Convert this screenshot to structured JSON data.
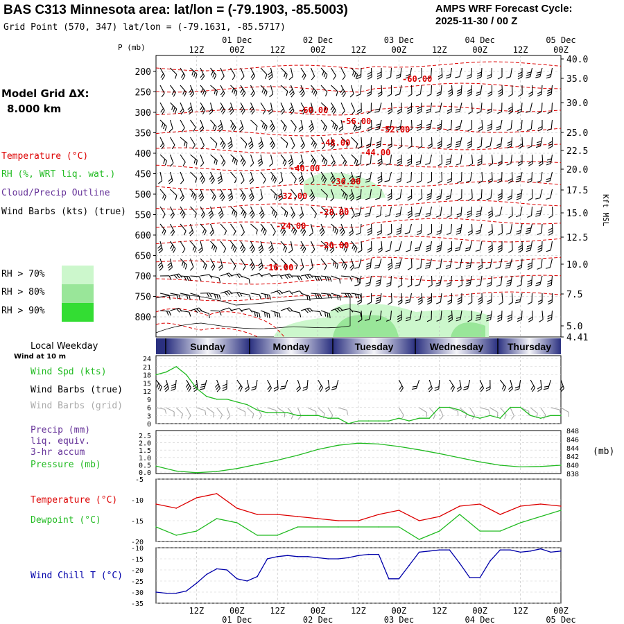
{
  "header": {
    "title": "BAS C313 Minnesota area:  lat/lon = (-79.1903, -85.5003)",
    "forecast_label": "AMPS WRF Forecast Cycle:",
    "forecast_cycle": "2025-11-30 / 00  Z",
    "grid_point": "Grid Point (570, 347) lat/lon = (-79.1631, -85.5717)"
  },
  "left_panel": {
    "model_grid_label": "Model Grid ΔX:",
    "model_grid_value": "8.000 km",
    "temp_label": "Temperature (°C)",
    "rh_label": "RH (%, WRT liq. wat.)",
    "cloud_label": "Cloud/Precip Outline",
    "wind_barbs_label": "Wind Barbs (kts) (true)",
    "rh_legend": [
      {
        "label": "RH > 70%",
        "color": "#ccf7cc"
      },
      {
        "label": "RH > 80%",
        "color": "#99e699"
      },
      {
        "label": "RH > 90%",
        "color": "#33dd33"
      }
    ]
  },
  "time_axis": {
    "hour_ticks": [
      "12Z",
      "00Z",
      "12Z",
      "00Z",
      "12Z",
      "00Z",
      "12Z",
      "00Z",
      "12Z",
      "00Z"
    ],
    "date_labels": [
      "01 Dec",
      "02 Dec",
      "03 Dec",
      "04 Dec",
      "05 Dec"
    ]
  },
  "profile": {
    "p_label": "P (mb)",
    "kft_label": "Kft MSL",
    "pressure_ticks": [
      "200",
      "250",
      "300",
      "350",
      "400",
      "450",
      "500",
      "550",
      "600",
      "650",
      "700",
      "750",
      "800"
    ],
    "height_ticks": [
      "40.0",
      "35.0",
      "30.0",
      "25.0",
      "22.5",
      "20.0",
      "17.5",
      "15.0",
      "12.5",
      "10.0",
      "7.5",
      "5.0",
      "4.41"
    ],
    "isotherm_labels": [
      "-60.00",
      "-60.00",
      "-56.00",
      "-52.00",
      "-48.00",
      "-44.00",
      "-40.00",
      "-36.00",
      "-32.00",
      "-28.00",
      "-24.00",
      "-20.00",
      "-16.00"
    ]
  },
  "weekday_bar": {
    "label": "Local Weekday",
    "days": [
      "Sunday",
      "Monday",
      "Tuesday",
      "Wednesday",
      "Thursday"
    ]
  },
  "wind_panel": {
    "sublabel": "Wind at 10 m",
    "spd_label": "Wind Spd (kts)",
    "barbs_true_label": "Wind Barbs (true)",
    "barbs_grid_label": "Wind Barbs (grid)",
    "y_ticks": [
      "24",
      "21",
      "18",
      "15",
      "12",
      "9",
      "6",
      "3",
      "0"
    ]
  },
  "precip_panel": {
    "precip_label": "Precip (mm)",
    "liq_label": "liq. equiv.",
    "accum_label": "3-hr accum",
    "pressure_label": "Pressure (mb)",
    "mb_unit": "(mb)",
    "left_ticks": [
      "2.5",
      "2.0",
      "1.5",
      "1.0",
      "0.5",
      "0.0"
    ],
    "right_ticks": [
      "848",
      "846",
      "844",
      "842",
      "840",
      "838"
    ]
  },
  "temp_panel": {
    "temp_label": "Temperature (°C)",
    "dew_label": "Dewpoint (°C)",
    "y_ticks": [
      "-5",
      "-10",
      "-15",
      "-20"
    ]
  },
  "chill_panel": {
    "label": "Wind Chill T (°C)",
    "y_ticks": [
      "-10",
      "-15",
      "-20",
      "-25",
      "-30",
      "-35"
    ]
  },
  "colors": {
    "temperature": "#dd0000",
    "rh": "#22bb22",
    "cloud": "#663399",
    "wind_chill": "#0000aa",
    "grid_barbs": "#aaaaaa"
  },
  "chart_data": [
    {
      "type": "line",
      "title": "Wind Spd (kts)",
      "x_unit": "forecast hour from 2025-11-30 00Z",
      "x": [
        0,
        3,
        6,
        9,
        12,
        15,
        18,
        21,
        24,
        27,
        30,
        33,
        36,
        39,
        42,
        45,
        48,
        51,
        54,
        57,
        60,
        63,
        66,
        69,
        72,
        75,
        78,
        81,
        84,
        87,
        90,
        93,
        96,
        99,
        102,
        105,
        108,
        111,
        114,
        117,
        120
      ],
      "series": [
        {
          "name": "Wind Spd (kts)",
          "values": [
            18,
            19,
            21,
            18,
            13,
            10,
            9,
            9,
            8,
            7,
            5,
            4,
            4,
            4,
            3,
            3,
            3,
            2,
            2,
            0,
            1,
            1,
            1,
            1,
            2,
            1,
            2,
            2,
            6,
            6,
            5,
            3,
            2,
            3,
            2,
            6,
            6,
            3,
            2,
            3,
            3
          ]
        }
      ],
      "ylim": [
        0,
        24
      ]
    },
    {
      "type": "line",
      "title": "Pressure (mb)",
      "x": [
        0,
        6,
        12,
        18,
        24,
        30,
        36,
        42,
        48,
        54,
        60,
        66,
        72,
        78,
        84,
        90,
        96,
        102,
        108,
        114,
        120
      ],
      "series": [
        {
          "name": "Pressure (mb)",
          "values": [
            839.8,
            838.6,
            838.2,
            838.5,
            839.2,
            840.2,
            841.2,
            842.4,
            843.8,
            844.8,
            845.3,
            845.1,
            844.5,
            843.7,
            842.8,
            841.8,
            840.8,
            840.0,
            839.6,
            839.7,
            840.0
          ]
        }
      ],
      "ylim": [
        838,
        848
      ]
    },
    {
      "type": "line",
      "title": "Temperature / Dewpoint (°C)",
      "x": [
        0,
        6,
        12,
        18,
        24,
        30,
        36,
        42,
        48,
        54,
        60,
        66,
        72,
        78,
        84,
        90,
        96,
        102,
        108,
        114,
        120
      ],
      "series": [
        {
          "name": "Temperature (°C)",
          "values": [
            -11,
            -12,
            -9.5,
            -8.5,
            -12,
            -13.5,
            -13.5,
            -14,
            -14.5,
            -15,
            -15,
            -13.5,
            -12.5,
            -15,
            -14,
            -11.5,
            -11,
            -13.5,
            -11.5,
            -11,
            -11.5
          ]
        },
        {
          "name": "Dewpoint (°C)",
          "values": [
            -16.5,
            -18.5,
            -17.5,
            -14.5,
            -15.5,
            -18.5,
            -18.5,
            -16.5,
            -16.5,
            -16.5,
            -16.5,
            -16.5,
            -16.5,
            -19.5,
            -17.5,
            -13.5,
            -17.5,
            -17.5,
            -15.5,
            -14.0,
            -12.5
          ]
        }
      ],
      "ylim": [
        -20,
        -5
      ]
    },
    {
      "type": "line",
      "title": "Wind Chill T (°C)",
      "x": [
        0,
        3,
        6,
        9,
        12,
        15,
        18,
        21,
        24,
        27,
        30,
        33,
        36,
        39,
        42,
        45,
        48,
        51,
        54,
        57,
        60,
        63,
        66,
        69,
        72,
        75,
        78,
        81,
        84,
        87,
        90,
        93,
        96,
        99,
        102,
        105,
        108,
        111,
        114,
        117,
        120
      ],
      "series": [
        {
          "name": "Wind Chill T (°C)",
          "values": [
            -30,
            -30.5,
            -30.5,
            -29.5,
            -26,
            -22,
            -19.5,
            -20,
            -24,
            -25,
            -23,
            -15,
            -14,
            -13.5,
            -14,
            -14,
            -14.5,
            -15,
            -15,
            -14.5,
            -13.5,
            -13,
            -13,
            -24,
            -24,
            -18,
            -12,
            -11.5,
            -11,
            -11,
            -17,
            -23.5,
            -23.5,
            -16,
            -11,
            -11,
            -12,
            -11.5,
            -10.5,
            -12,
            -11.5
          ]
        }
      ],
      "ylim": [
        -35,
        -10
      ]
    }
  ]
}
